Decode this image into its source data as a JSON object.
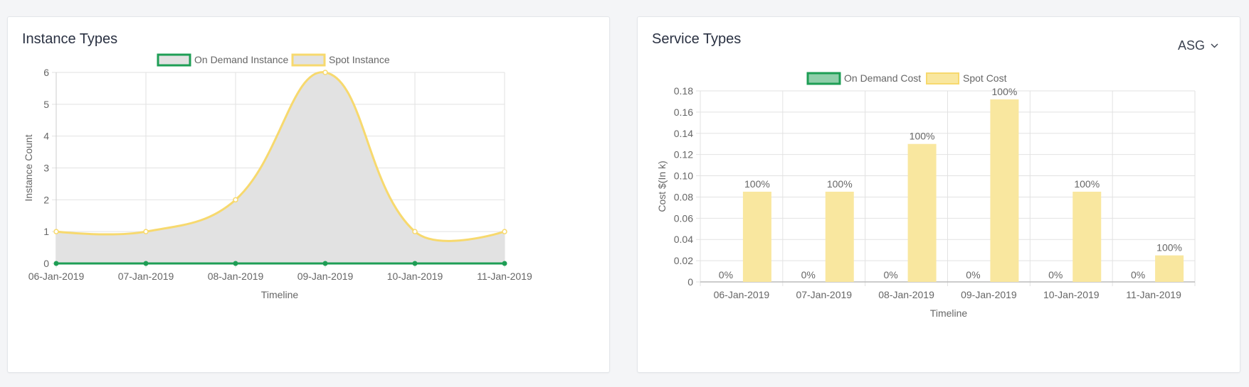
{
  "panels": {
    "instance": {
      "title": "Instance Types"
    },
    "service": {
      "title": "Service Types",
      "dropdown": {
        "selected": "ASG",
        "icon": "chevron-down-icon"
      }
    }
  },
  "colors": {
    "on_demand": "#1e9e55",
    "on_demand_fill": "#8fcfaa",
    "spot": "#f7d96e",
    "spot_bar": "#f9e79f",
    "area_fill": "#e2e2e2",
    "grid": "#e2e2e2",
    "text": "#666666"
  },
  "chart_data": [
    {
      "type": "line",
      "title": "",
      "xlabel": "Timeline",
      "ylabel": "Instance Count",
      "ylim": [
        0,
        6
      ],
      "yticks": [
        "0",
        "1",
        "2",
        "3",
        "4",
        "5",
        "6"
      ],
      "grid": true,
      "legend": "top-center",
      "categories": [
        "06-Jan-2019",
        "07-Jan-2019",
        "08-Jan-2019",
        "09-Jan-2019",
        "10-Jan-2019",
        "11-Jan-2019"
      ],
      "series": [
        {
          "name": "On Demand Instance",
          "values": [
            0,
            0,
            0,
            0,
            0,
            0
          ]
        },
        {
          "name": "Spot Instance",
          "values": [
            1,
            1,
            2,
            6,
            1,
            1
          ],
          "filled": true
        }
      ]
    },
    {
      "type": "bar",
      "title": "",
      "xlabel": "Timeline",
      "ylabel": "Cost $(In k)",
      "ylim": [
        0,
        0.18
      ],
      "yticks": [
        "0",
        "0.02",
        "0.04",
        "0.06",
        "0.08",
        "0.10",
        "0.12",
        "0.14",
        "0.16",
        "0.18"
      ],
      "grid": true,
      "legend": "top-center",
      "categories": [
        "06-Jan-2019",
        "07-Jan-2019",
        "08-Jan-2019",
        "09-Jan-2019",
        "10-Jan-2019",
        "11-Jan-2019"
      ],
      "series": [
        {
          "name": "On Demand Cost",
          "values": [
            0,
            0,
            0,
            0,
            0,
            0
          ],
          "labels": [
            "0%",
            "0%",
            "0%",
            "0%",
            "0%",
            "0%"
          ]
        },
        {
          "name": "Spot Cost",
          "values": [
            0.085,
            0.085,
            0.13,
            0.172,
            0.085,
            0.025
          ],
          "labels": [
            "100%",
            "100%",
            "100%",
            "100%",
            "100%",
            "100%"
          ]
        }
      ]
    }
  ]
}
